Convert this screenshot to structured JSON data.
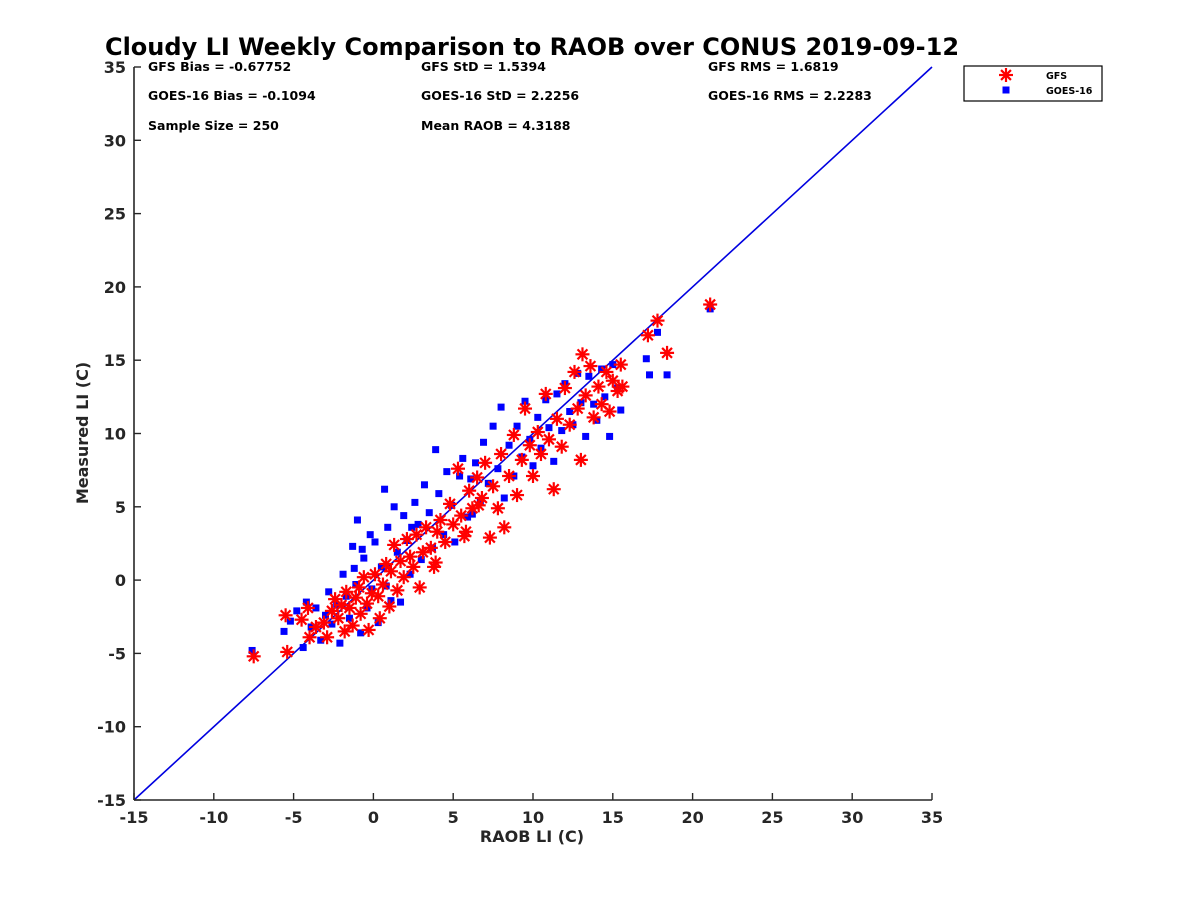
{
  "chart_data": {
    "type": "scatter",
    "title": "Cloudy LI Weekly Comparison to RAOB over CONUS 2019-09-12",
    "xlabel": "RAOB LI (C)",
    "ylabel": "Measured LI (C)",
    "xlim": [
      -15,
      35
    ],
    "ylim": [
      -15,
      35
    ],
    "xticks": [
      "-15",
      "-10",
      "-5",
      "0",
      "5",
      "10",
      "15",
      "20",
      "25",
      "30",
      "35"
    ],
    "yticks": [
      "-15",
      "-10",
      "-5",
      "0",
      "5",
      "10",
      "15",
      "20",
      "25",
      "30",
      "35"
    ],
    "grid": false,
    "legend_position": "outside top-right",
    "stats": [
      "GFS Bias = -0.67752",
      "GFS StD = 1.5394",
      "GFS RMS = 1.6819",
      "GOES-16 Bias = -0.1094",
      "GOES-16 StD = 2.2256",
      "GOES-16 RMS = 2.2283",
      "Sample Size = 250",
      "Mean RAOB = 4.3188"
    ],
    "reference_line": {
      "kind": "1:1",
      "x": [
        -15,
        35
      ],
      "y": [
        -15,
        35
      ],
      "color": "#0000e0"
    },
    "series": [
      {
        "name": "GFS",
        "marker": "asterisk",
        "color": "#ff0000",
        "points": [
          [
            -7.5,
            -5.2
          ],
          [
            -5.5,
            -2.4
          ],
          [
            -5.4,
            -4.9
          ],
          [
            -4.5,
            -2.7
          ],
          [
            -4.1,
            -1.9
          ],
          [
            -4.0,
            -3.9
          ],
          [
            -3.6,
            -3.2
          ],
          [
            -3.1,
            -2.9
          ],
          [
            -2.9,
            -3.9
          ],
          [
            -2.6,
            -2.1
          ],
          [
            -2.4,
            -1.3
          ],
          [
            -2.2,
            -2.6
          ],
          [
            -2.0,
            -1.7
          ],
          [
            -1.8,
            -3.5
          ],
          [
            -1.7,
            -0.8
          ],
          [
            -1.5,
            -1.9
          ],
          [
            -1.3,
            -3.1
          ],
          [
            -1.1,
            -1.2
          ],
          [
            -0.9,
            -0.5
          ],
          [
            -0.8,
            -2.3
          ],
          [
            -0.6,
            0.2
          ],
          [
            -0.4,
            -1.6
          ],
          [
            -0.3,
            -3.4
          ],
          [
            -0.1,
            -0.9
          ],
          [
            0.1,
            0.4
          ],
          [
            0.3,
            -1.1
          ],
          [
            0.4,
            -2.6
          ],
          [
            0.6,
            -0.3
          ],
          [
            0.8,
            1.1
          ],
          [
            1.0,
            -1.8
          ],
          [
            1.1,
            0.6
          ],
          [
            1.3,
            2.4
          ],
          [
            1.5,
            -0.7
          ],
          [
            1.7,
            1.3
          ],
          [
            1.9,
            0.2
          ],
          [
            2.1,
            2.8
          ],
          [
            2.3,
            1.6
          ],
          [
            2.5,
            0.9
          ],
          [
            2.7,
            3.1
          ],
          [
            2.9,
            -0.5
          ],
          [
            3.1,
            1.9
          ],
          [
            3.3,
            3.6
          ],
          [
            3.6,
            2.2
          ],
          [
            3.8,
            0.9
          ],
          [
            4.0,
            3.3
          ],
          [
            4.2,
            4.1
          ],
          [
            4.5,
            2.6
          ],
          [
            4.8,
            5.2
          ],
          [
            5.0,
            3.8
          ],
          [
            5.3,
            7.6
          ],
          [
            5.5,
            4.4
          ],
          [
            5.8,
            3.3
          ],
          [
            6.0,
            6.1
          ],
          [
            6.2,
            4.9
          ],
          [
            6.5,
            7.0
          ],
          [
            6.8,
            5.6
          ],
          [
            7.0,
            8.0
          ],
          [
            7.3,
            2.9
          ],
          [
            7.5,
            6.4
          ],
          [
            7.8,
            4.9
          ],
          [
            8.0,
            8.6
          ],
          [
            8.2,
            3.6
          ],
          [
            8.5,
            7.1
          ],
          [
            8.8,
            9.9
          ],
          [
            9.0,
            5.8
          ],
          [
            9.3,
            8.2
          ],
          [
            9.5,
            11.7
          ],
          [
            9.8,
            9.2
          ],
          [
            10.0,
            7.1
          ],
          [
            10.3,
            10.1
          ],
          [
            10.5,
            8.6
          ],
          [
            10.8,
            12.7
          ],
          [
            11.0,
            9.6
          ],
          [
            11.3,
            6.2
          ],
          [
            11.5,
            11.0
          ],
          [
            11.8,
            9.1
          ],
          [
            12.0,
            13.1
          ],
          [
            12.3,
            10.6
          ],
          [
            12.6,
            14.2
          ],
          [
            12.8,
            11.7
          ],
          [
            13.0,
            8.2
          ],
          [
            13.1,
            15.4
          ],
          [
            13.3,
            12.6
          ],
          [
            13.6,
            14.6
          ],
          [
            13.8,
            11.1
          ],
          [
            14.1,
            13.2
          ],
          [
            14.3,
            12.0
          ],
          [
            14.6,
            14.2
          ],
          [
            14.8,
            11.5
          ],
          [
            15.0,
            13.6
          ],
          [
            15.3,
            12.9
          ],
          [
            15.5,
            14.7
          ],
          [
            15.6,
            13.2
          ],
          [
            17.2,
            16.7
          ],
          [
            17.8,
            17.7
          ],
          [
            18.4,
            15.5
          ],
          [
            21.1,
            18.8
          ],
          [
            5.7,
            3.0
          ],
          [
            6.6,
            5.1
          ],
          [
            3.9,
            1.2
          ]
        ]
      },
      {
        "name": "GOES-16",
        "marker": "square",
        "color": "#0000ff",
        "points": [
          [
            -7.6,
            -4.8
          ],
          [
            -5.6,
            -3.5
          ],
          [
            -5.2,
            -2.8
          ],
          [
            -4.8,
            -2.1
          ],
          [
            -4.4,
            -4.6
          ],
          [
            -4.2,
            -1.5
          ],
          [
            -3.9,
            -3.2
          ],
          [
            -3.6,
            -1.9
          ],
          [
            -3.3,
            -4.1
          ],
          [
            -3.0,
            -2.4
          ],
          [
            -2.8,
            -0.8
          ],
          [
            -2.6,
            -3.0
          ],
          [
            -2.3,
            -1.7
          ],
          [
            -2.1,
            -4.3
          ],
          [
            -1.9,
            0.4
          ],
          [
            -1.7,
            -1.1
          ],
          [
            -1.5,
            -2.6
          ],
          [
            -1.3,
            2.3
          ],
          [
            -1.1,
            -0.3
          ],
          [
            -1.0,
            4.1
          ],
          [
            -0.8,
            -3.6
          ],
          [
            -0.6,
            1.5
          ],
          [
            -0.4,
            -1.9
          ],
          [
            -0.2,
            3.1
          ],
          [
            -0.1,
            -0.6
          ],
          [
            0.1,
            2.6
          ],
          [
            0.3,
            -2.9
          ],
          [
            0.5,
            0.9
          ],
          [
            0.7,
            6.2
          ],
          [
            0.9,
            3.6
          ],
          [
            1.1,
            -1.4
          ],
          [
            1.3,
            5.0
          ],
          [
            1.5,
            1.9
          ],
          [
            1.7,
            -1.5
          ],
          [
            1.9,
            4.4
          ],
          [
            2.1,
            2.7
          ],
          [
            2.3,
            0.4
          ],
          [
            2.6,
            5.3
          ],
          [
            2.8,
            3.8
          ],
          [
            3.0,
            1.4
          ],
          [
            3.2,
            6.5
          ],
          [
            3.5,
            4.6
          ],
          [
            3.7,
            2.2
          ],
          [
            3.9,
            8.9
          ],
          [
            4.1,
            5.9
          ],
          [
            4.4,
            3.1
          ],
          [
            4.6,
            7.4
          ],
          [
            4.9,
            5.1
          ],
          [
            5.1,
            2.6
          ],
          [
            5.4,
            7.1
          ],
          [
            5.6,
            8.3
          ],
          [
            5.9,
            4.3
          ],
          [
            6.1,
            6.9
          ],
          [
            6.4,
            8.0
          ],
          [
            6.7,
            5.3
          ],
          [
            6.9,
            9.4
          ],
          [
            7.2,
            6.6
          ],
          [
            7.5,
            10.5
          ],
          [
            7.8,
            7.6
          ],
          [
            8.0,
            11.8
          ],
          [
            8.2,
            5.6
          ],
          [
            8.5,
            9.2
          ],
          [
            8.8,
            7.1
          ],
          [
            9.0,
            10.5
          ],
          [
            9.3,
            8.4
          ],
          [
            9.5,
            12.2
          ],
          [
            9.8,
            9.6
          ],
          [
            10.0,
            7.8
          ],
          [
            10.3,
            11.1
          ],
          [
            10.5,
            9.0
          ],
          [
            10.8,
            12.3
          ],
          [
            11.0,
            10.4
          ],
          [
            11.3,
            8.1
          ],
          [
            11.5,
            12.7
          ],
          [
            11.8,
            10.2
          ],
          [
            12.0,
            13.4
          ],
          [
            12.3,
            11.5
          ],
          [
            12.5,
            10.6
          ],
          [
            12.8,
            14.1
          ],
          [
            13.0,
            12.1
          ],
          [
            13.3,
            9.8
          ],
          [
            13.5,
            13.9
          ],
          [
            13.8,
            12.0
          ],
          [
            14.0,
            10.9
          ],
          [
            14.3,
            14.4
          ],
          [
            14.5,
            12.5
          ],
          [
            14.8,
            9.8
          ],
          [
            15.0,
            14.7
          ],
          [
            15.3,
            13.1
          ],
          [
            15.5,
            11.6
          ],
          [
            17.1,
            15.1
          ],
          [
            17.3,
            14.0
          ],
          [
            17.8,
            16.9
          ],
          [
            18.4,
            14.0
          ],
          [
            21.1,
            18.5
          ],
          [
            0.8,
            -0.4
          ],
          [
            -1.2,
            0.8
          ],
          [
            2.4,
            3.6
          ],
          [
            6.2,
            4.5
          ],
          [
            -0.7,
            2.1
          ]
        ]
      }
    ]
  }
}
